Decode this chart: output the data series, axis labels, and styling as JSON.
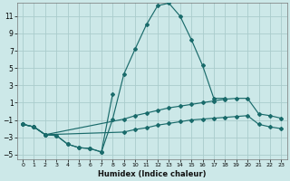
{
  "xlabel": "Humidex (Indice chaleur)",
  "background_color": "#cce8e8",
  "grid_color": "#aacccc",
  "line_color": "#1a6b6b",
  "xlim": [
    -0.5,
    23.5
  ],
  "ylim": [
    -5.5,
    12.5
  ],
  "yticks": [
    -5,
    -3,
    -1,
    1,
    3,
    5,
    7,
    9,
    11
  ],
  "xticks": [
    0,
    1,
    2,
    3,
    4,
    5,
    6,
    7,
    8,
    9,
    10,
    11,
    12,
    13,
    14,
    15,
    16,
    17,
    18,
    19,
    20,
    21,
    22,
    23
  ],
  "lines": [
    {
      "x": [
        0,
        1,
        2,
        3,
        4,
        5,
        6,
        7,
        8,
        9,
        10,
        11,
        12,
        13,
        14,
        15,
        16,
        17,
        18
      ],
      "y": [
        -1.5,
        -1.8,
        -2.7,
        -2.8,
        -3.8,
        -4.2,
        -4.3,
        -4.7,
        -0.9,
        4.3,
        7.2,
        10.0,
        12.2,
        12.5,
        11.0,
        8.3,
        5.3,
        1.5,
        1.5
      ]
    },
    {
      "x": [
        0,
        1,
        2,
        3,
        4,
        5,
        6,
        7,
        8
      ],
      "y": [
        -1.5,
        -1.8,
        -2.7,
        -2.8,
        -3.8,
        -4.2,
        -4.3,
        -4.7,
        2.0
      ]
    },
    {
      "x": [
        0,
        1,
        2,
        9,
        10,
        11,
        12,
        13,
        14,
        15,
        16,
        17,
        18,
        19,
        20,
        21,
        22,
        23
      ],
      "y": [
        -1.5,
        -1.8,
        -2.7,
        -0.9,
        -0.5,
        -0.2,
        0.1,
        0.4,
        0.6,
        0.8,
        1.0,
        1.2,
        1.4,
        1.5,
        1.5,
        -0.3,
        -0.5,
        -0.8
      ]
    },
    {
      "x": [
        0,
        1,
        2,
        9,
        10,
        11,
        12,
        13,
        14,
        15,
        16,
        17,
        18,
        19,
        20,
        21,
        22,
        23
      ],
      "y": [
        -1.5,
        -1.8,
        -2.7,
        -2.4,
        -2.1,
        -1.9,
        -1.6,
        -1.4,
        -1.2,
        -1.0,
        -0.9,
        -0.8,
        -0.7,
        -0.6,
        -0.5,
        -1.5,
        -1.8,
        -2.0
      ]
    }
  ]
}
